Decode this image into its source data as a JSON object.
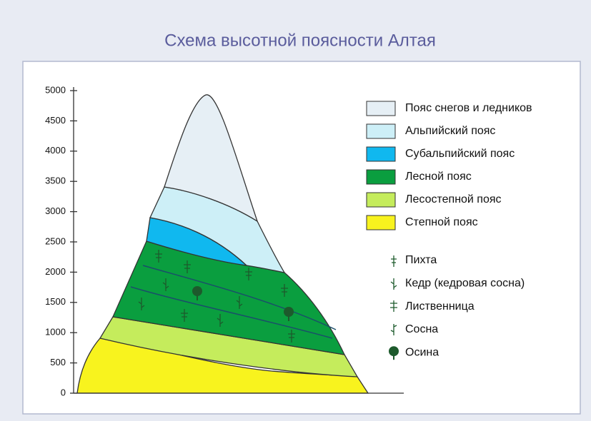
{
  "title": "Схема высотной поясности Алтая",
  "axis": {
    "ticks": [
      0,
      500,
      1000,
      1500,
      2000,
      2500,
      3000,
      3500,
      4000,
      4500,
      5000
    ]
  },
  "zones": [
    {
      "name": "Пояс снегов и ледников",
      "color": "#e6eff5"
    },
    {
      "name": "Альпийский пояс",
      "color": "#cdeff7"
    },
    {
      "name": "Субальпийский пояс",
      "color": "#10b8ef"
    },
    {
      "name": "Лесной пояс",
      "color": "#0a9e3f"
    },
    {
      "name": "Лесостепной пояс",
      "color": "#c5ec5c"
    },
    {
      "name": "Степной пояс",
      "color": "#f8f31e"
    }
  ],
  "trees": [
    "Пихта",
    "Кедр (кедровая сосна)",
    "Лиственница",
    "Сосна",
    "Осина"
  ]
}
